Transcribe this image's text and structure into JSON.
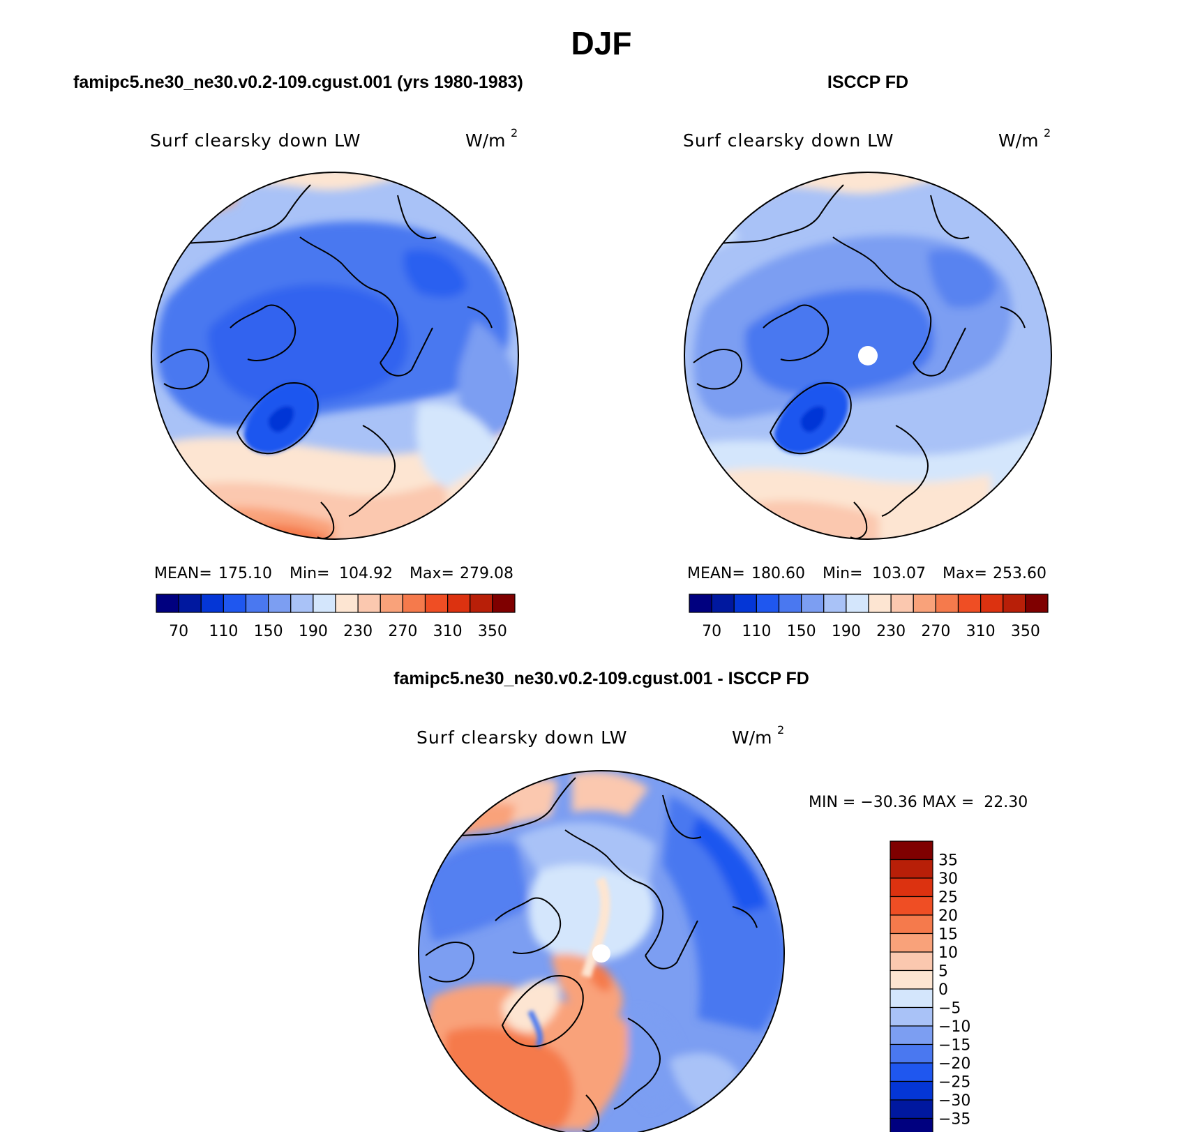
{
  "figure": {
    "title": "DJF"
  },
  "panels": [
    {
      "id": "model",
      "heading": "famipc5.ne30_ne30.v0.2-109.cgust.001 (yrs 1980-1983)",
      "variable": "Surf clearsky down LW",
      "units_base": "W/m",
      "units_exp": "2",
      "stats": {
        "mean_label": "MEAN=",
        "mean": "175.10",
        "min_label": "Min=",
        "min": "104.92",
        "max_label": "Max=",
        "max": "279.08"
      },
      "colorbar": {
        "colors": [
          "#00007f",
          "#00189f",
          "#0436d6",
          "#1f57ef",
          "#4a78f0",
          "#7c9ef2",
          "#a9c2f7",
          "#d4e6fc",
          "#fde5d2",
          "#fbc8af",
          "#f9a27a",
          "#f57a4c",
          "#ef4e24",
          "#dc3210",
          "#b81f08",
          "#7f0000"
        ],
        "labels": [
          "70",
          "110",
          "150",
          "190",
          "230",
          "270",
          "310",
          "350"
        ]
      },
      "has_missing_pole": false
    },
    {
      "id": "obs",
      "heading": "ISCCP FD",
      "variable": "Surf clearsky down LW",
      "units_base": "W/m",
      "units_exp": "2",
      "stats": {
        "mean_label": "MEAN=",
        "mean": "180.60",
        "min_label": "Min=",
        "min": "103.07",
        "max_label": "Max=",
        "max": "253.60"
      },
      "colorbar": {
        "colors": [
          "#00007f",
          "#00189f",
          "#0436d6",
          "#1f57ef",
          "#4a78f0",
          "#7c9ef2",
          "#a9c2f7",
          "#d4e6fc",
          "#fde5d2",
          "#fbc8af",
          "#f9a27a",
          "#f57a4c",
          "#ef4e24",
          "#dc3210",
          "#b81f08",
          "#7f0000"
        ],
        "labels": [
          "70",
          "110",
          "150",
          "190",
          "230",
          "270",
          "310",
          "350"
        ]
      },
      "has_missing_pole": true
    },
    {
      "id": "diff",
      "heading": "famipc5.ne30_ne30.v0.2-109.cgust.001 - ISCCP FD",
      "variable": "Surf clearsky down LW",
      "units_base": "W/m",
      "units_exp": "2",
      "stats_text": "MIN = −30.36 MAX =  22.30",
      "colorbar": {
        "colors_top_to_bottom": [
          "#7f0000",
          "#b81f08",
          "#dc3210",
          "#ef4e24",
          "#f57a4c",
          "#f9a27a",
          "#fbc8af",
          "#fde5d2",
          "#d4e6fc",
          "#a9c2f7",
          "#7c9ef2",
          "#4a78f0",
          "#1f57ef",
          "#0436d6",
          "#00189f",
          "#00007f"
        ],
        "labels_top_to_bottom": [
          "35",
          "30",
          "25",
          "20",
          "15",
          "10",
          "5",
          "0",
          "−5",
          "−10",
          "−15",
          "−20",
          "−25",
          "−30",
          "−35"
        ]
      },
      "has_missing_pole": true
    }
  ]
}
